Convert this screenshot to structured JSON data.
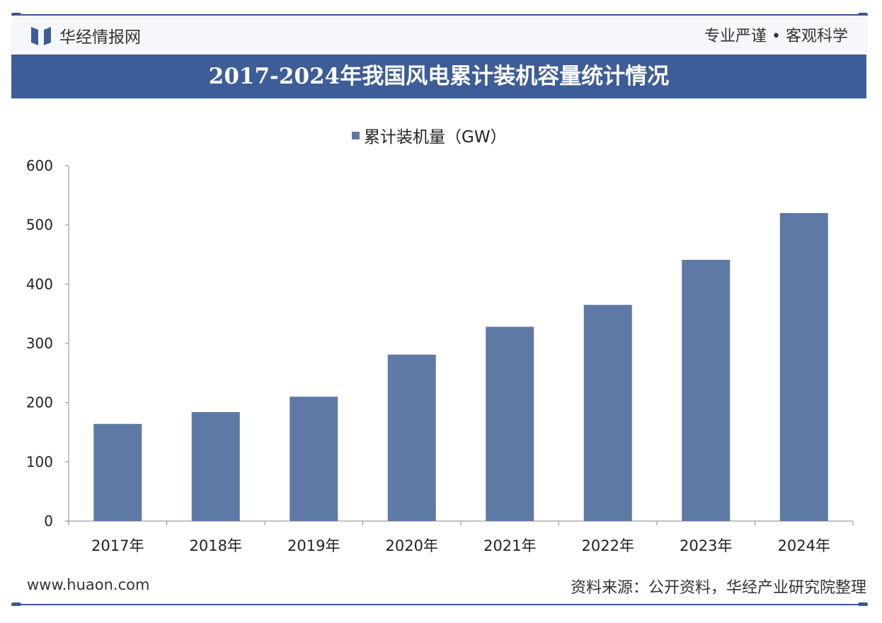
{
  "header": {
    "brand": "华经情报网",
    "slogan": "专业严谨 • 客观科学"
  },
  "colors": {
    "bar": "#5f79a6",
    "title_bg": "#3d5d98"
  },
  "chart_data": {
    "type": "bar",
    "title": "2017-2024年我国风电累计装机容量统计情况",
    "categories": [
      "2017年",
      "2018年",
      "2019年",
      "2020年",
      "2021年",
      "2022年",
      "2023年",
      "2024年"
    ],
    "series": [
      {
        "name": "累计装机量（GW）",
        "values": [
          164,
          184,
          210,
          281,
          328,
          365,
          441,
          520
        ]
      }
    ],
    "ylim": [
      0,
      600
    ],
    "yticks": [
      0,
      100,
      200,
      300,
      400,
      500,
      600
    ],
    "legend": "top-center",
    "grid": false
  },
  "footer": {
    "website": "www.huaon.com",
    "source": "资料来源：公开资料，华经产业研究院整理"
  }
}
